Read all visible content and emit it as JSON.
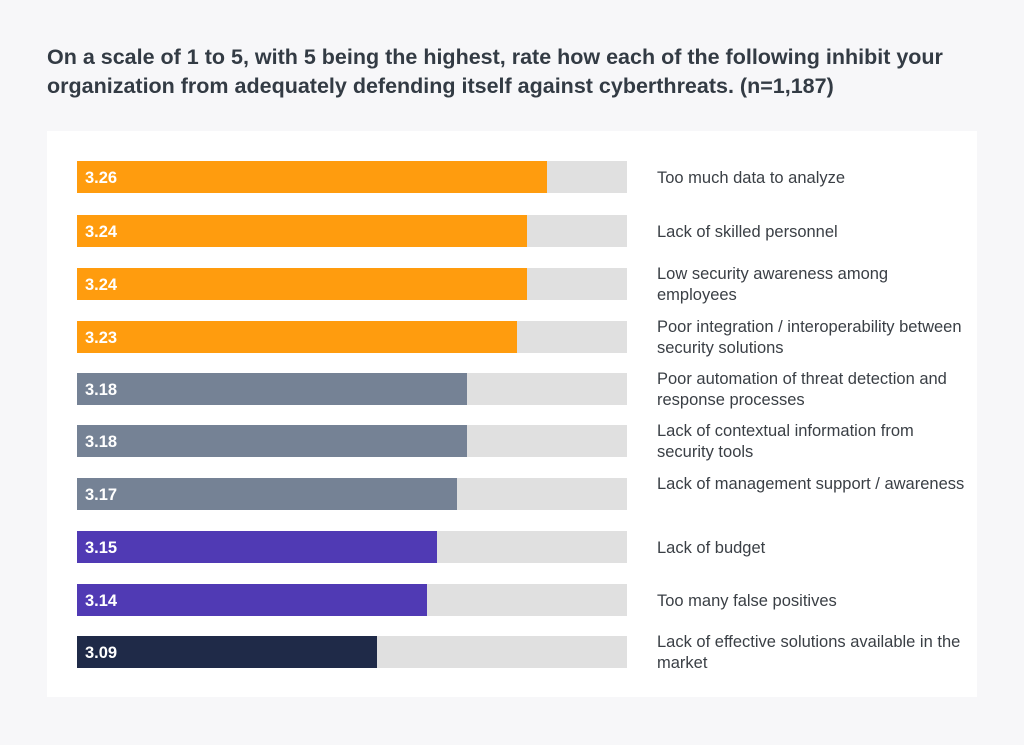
{
  "chart_data": {
    "type": "bar",
    "orientation": "horizontal",
    "title": "On a scale of 1 to 5, with 5 being the highest, rate how each of the following inhibit your organization from adequately defending itself against cyberthreats. (n=1,187)",
    "categories": [
      "Too much data to analyze",
      "Lack of skilled personnel",
      "Low security awareness among employees",
      "Poor integration / interoperability between security solutions",
      "Poor automation of threat detection and response processes",
      "Lack of contextual information from security tools",
      "Lack of management support / awareness",
      "Lack of budget",
      "Too many false positives",
      "Lack of effective solutions available in the market"
    ],
    "values": [
      3.26,
      3.24,
      3.24,
      3.23,
      3.18,
      3.18,
      3.17,
      3.15,
      3.14,
      3.09
    ],
    "value_labels": [
      "3.26",
      "3.24",
      "3.24",
      "3.23",
      "3.18",
      "3.18",
      "3.17",
      "3.15",
      "3.14",
      "3.09"
    ],
    "bar_colors": [
      "#ff9c0e",
      "#ff9c0e",
      "#ff9c0e",
      "#ff9c0e",
      "#758295",
      "#758295",
      "#758295",
      "#503ab4",
      "#503ab4",
      "#1f2a48"
    ],
    "track_color": "#e0e0e0",
    "xlim": [
      2.79,
      3.34
    ],
    "grid": false,
    "legend": "none"
  }
}
